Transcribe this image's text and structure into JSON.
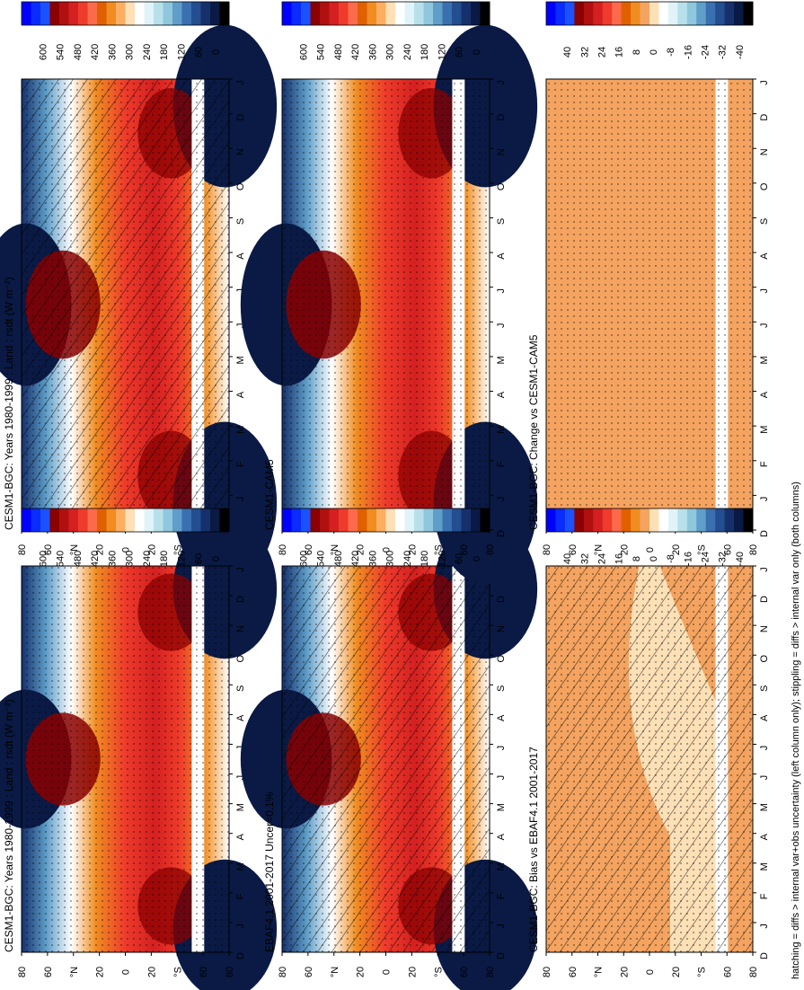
{
  "footnote": "hatching = diffs > internal var+obs uncertainty (left column only); stippling = diffs > internal var only (both columns)",
  "months": [
    "D",
    "J",
    "F",
    "M",
    "A",
    "M",
    "J",
    "J",
    "A",
    "S",
    "O",
    "N",
    "D",
    "J"
  ],
  "lat_ticks": [
    "80",
    "60",
    "°N",
    "20",
    "0",
    "20",
    "°S",
    "60",
    "80"
  ],
  "colorbars": {
    "absolute": {
      "labels": [
        "600",
        "540",
        "480",
        "420",
        "360",
        "300",
        "240",
        "180",
        "120",
        "60",
        "0"
      ],
      "colors": [
        "#0000ff",
        "#0a2cff",
        "#1a52ff",
        "#8b0000",
        "#b01010",
        "#d42020",
        "#ee3b2b",
        "#fb6a4a",
        "#e06000",
        "#f08c20",
        "#fdae61",
        "#fee0b6",
        "#ffffff",
        "#e0f3f8",
        "#b8e0ea",
        "#8fc7dc",
        "#5f9ec8",
        "#3a6fb0",
        "#234e90",
        "#15306b",
        "#0a1a45",
        "#000000"
      ]
    },
    "difference": {
      "labels": [
        "40",
        "32",
        "24",
        "16",
        "8",
        "0",
        "-8",
        "-16",
        "-24",
        "-32",
        "-40"
      ],
      "colors": [
        "#0000ff",
        "#0a2cff",
        "#1a52ff",
        "#8b0000",
        "#b01010",
        "#d42020",
        "#ee3b2b",
        "#fb6a4a",
        "#e06000",
        "#f08c20",
        "#f4a460",
        "#fde0b6",
        "#ffffff",
        "#e0f3f8",
        "#b8e0ea",
        "#8fc7dc",
        "#5f9ec8",
        "#3a6fb0",
        "#234e90",
        "#15306b",
        "#0a1a45",
        "#000000"
      ]
    }
  },
  "panels": [
    {
      "id": "model-abs",
      "title": "CESM1-BGC: Years 1980-1999 : Land : rsdt (W m⁻²)",
      "colorbar": "absolute",
      "hatched": true,
      "stippled": true
    },
    {
      "id": "model-abs-2",
      "title": "CESM1-BGC: Years 1980-1999 : Land : rsdt (W m⁻²)",
      "colorbar": "absolute",
      "hatched": false,
      "stippled": true
    },
    {
      "id": "obs",
      "title": "EBAF4.1 2001-2017 Uncer=0.1%",
      "colorbar": "absolute",
      "hatched": true,
      "stippled": true
    },
    {
      "id": "ref-model",
      "title": "CESM1-CAM5",
      "colorbar": "absolute",
      "hatched": false,
      "stippled": true
    },
    {
      "id": "bias",
      "title": "CESM1-BGC: Bias vs EBAF4.1 2001-2017",
      "colorbar": "difference",
      "hatched": true,
      "stippled": true
    },
    {
      "id": "change",
      "title": "CESM1-BGC: Change vs CESM1-CAM5",
      "colorbar": "difference",
      "hatched": false,
      "stippled": true
    }
  ],
  "chart_data": [
    {
      "type": "heatmap",
      "title": "CESM1-BGC: Years 1980-1999 : Land : rsdt (W m⁻²)",
      "x": [
        "D",
        "J",
        "F",
        "M",
        "A",
        "M",
        "J",
        "J",
        "A",
        "S",
        "O",
        "N",
        "D",
        "J"
      ],
      "y": [
        "80°N",
        "60°N",
        "40°N",
        "20°N",
        "0",
        "20°S",
        "40°S",
        "60°S",
        "80°S"
      ],
      "colorbar_range": [
        0,
        600
      ],
      "colorbar_step": 60
    },
    {
      "type": "heatmap",
      "title": "EBAF4.1 2001-2017 Uncer=0.1%",
      "x": [
        "D",
        "J",
        "F",
        "M",
        "A",
        "M",
        "J",
        "J",
        "A",
        "S",
        "O",
        "N",
        "D",
        "J"
      ],
      "y": [
        "80°N",
        "60°N",
        "40°N",
        "20°N",
        "0",
        "20°S",
        "40°S",
        "60°S",
        "80°S"
      ],
      "colorbar_range": [
        0,
        600
      ],
      "colorbar_step": 60
    },
    {
      "type": "heatmap",
      "title": "CESM1-BGC: Bias vs EBAF4.1 2001-2017",
      "x": [
        "D",
        "J",
        "F",
        "M",
        "A",
        "M",
        "J",
        "J",
        "A",
        "S",
        "O",
        "N",
        "D",
        "J"
      ],
      "y": [
        "80°N",
        "60°N",
        "40°N",
        "20°N",
        "0",
        "20°S",
        "40°S",
        "60°S",
        "80°S"
      ],
      "colorbar_range": [
        -40,
        40
      ],
      "colorbar_step": 8
    },
    {
      "type": "heatmap",
      "title": "CESM1-CAM5",
      "x": [
        "D",
        "J",
        "F",
        "M",
        "A",
        "M",
        "J",
        "J",
        "A",
        "S",
        "O",
        "N",
        "D",
        "J"
      ],
      "y": [
        "80°N",
        "60°N",
        "40°N",
        "20°N",
        "0",
        "20°S",
        "40°S",
        "60°S",
        "80°S"
      ],
      "colorbar_range": [
        0,
        600
      ],
      "colorbar_step": 60
    },
    {
      "type": "heatmap",
      "title": "CESM1-BGC: Change vs CESM1-CAM5",
      "x": [
        "D",
        "J",
        "F",
        "M",
        "A",
        "M",
        "J",
        "J",
        "A",
        "S",
        "O",
        "N",
        "D",
        "J"
      ],
      "y": [
        "80°N",
        "60°N",
        "40°N",
        "20°N",
        "0",
        "20°S",
        "40°S",
        "60°S",
        "80°S"
      ],
      "colorbar_range": [
        -40,
        40
      ],
      "colorbar_step": 8
    }
  ]
}
